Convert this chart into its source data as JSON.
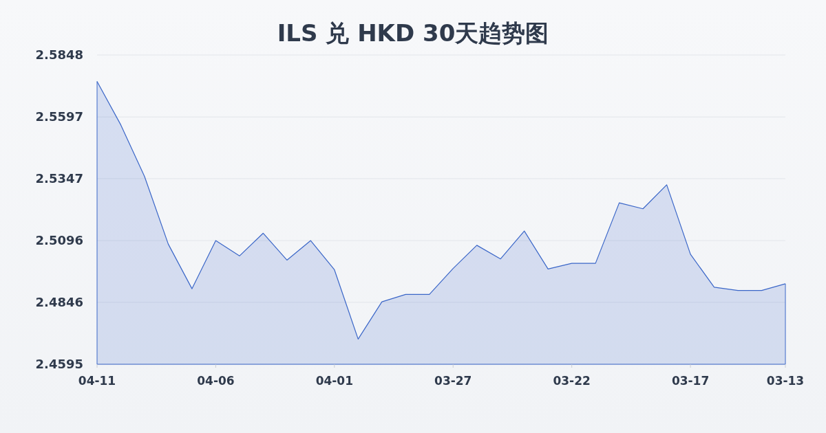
{
  "chart_data": {
    "type": "area",
    "title": "ILS 兑 HKD 30天趋势图",
    "categories": [
      "04-11",
      null,
      null,
      null,
      null,
      "04-06",
      null,
      null,
      null,
      null,
      "04-01",
      null,
      null,
      null,
      null,
      "03-27",
      null,
      null,
      null,
      null,
      "03-22",
      null,
      null,
      null,
      null,
      "03-17",
      null,
      null,
      null,
      "03-13"
    ],
    "values": [
      2.5741,
      2.5565,
      2.5356,
      2.5082,
      2.4901,
      2.5096,
      2.5034,
      2.5126,
      2.5017,
      2.5096,
      2.4978,
      2.4697,
      2.4848,
      2.4878,
      2.4878,
      2.4983,
      2.5077,
      2.5022,
      2.5135,
      2.4981,
      2.5004,
      2.5004,
      2.5249,
      2.5225,
      2.5322,
      2.5041,
      2.4907,
      2.4894,
      2.4894,
      2.4921
    ],
    "color": "#3a66c8",
    "ylim": [
      2.4595,
      2.5848
    ],
    "yticks": [
      2.4595,
      2.4846,
      2.5096,
      2.5347,
      2.5597,
      2.5848
    ],
    "grid": "y"
  }
}
